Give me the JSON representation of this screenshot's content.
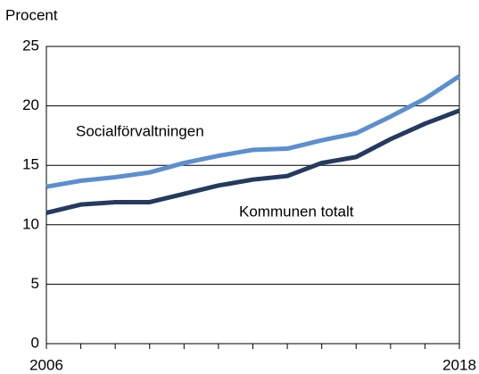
{
  "chart_data": {
    "type": "line",
    "ylabel": "Procent",
    "x": [
      2006,
      2007,
      2008,
      2009,
      2010,
      2011,
      2012,
      2013,
      2014,
      2015,
      2016,
      2017,
      2018
    ],
    "series": [
      {
        "name": "Socialförvaltningen",
        "color": "#5b8fd0",
        "values": [
          13.2,
          13.7,
          14.0,
          14.4,
          15.2,
          15.8,
          16.3,
          16.4,
          17.1,
          17.7,
          19.1,
          20.6,
          22.5
        ]
      },
      {
        "name": "Kommunen totalt",
        "color": "#243a5e",
        "values": [
          11.0,
          11.7,
          11.9,
          11.9,
          12.6,
          13.3,
          13.8,
          14.1,
          15.2,
          15.7,
          17.2,
          18.5,
          19.6
        ]
      }
    ],
    "xlim": [
      2006,
      2018
    ],
    "xticks": [
      2006,
      2018
    ],
    "ylim": [
      0,
      25
    ],
    "yticks": [
      0,
      5,
      10,
      15,
      20,
      25
    ],
    "grid": true
  }
}
